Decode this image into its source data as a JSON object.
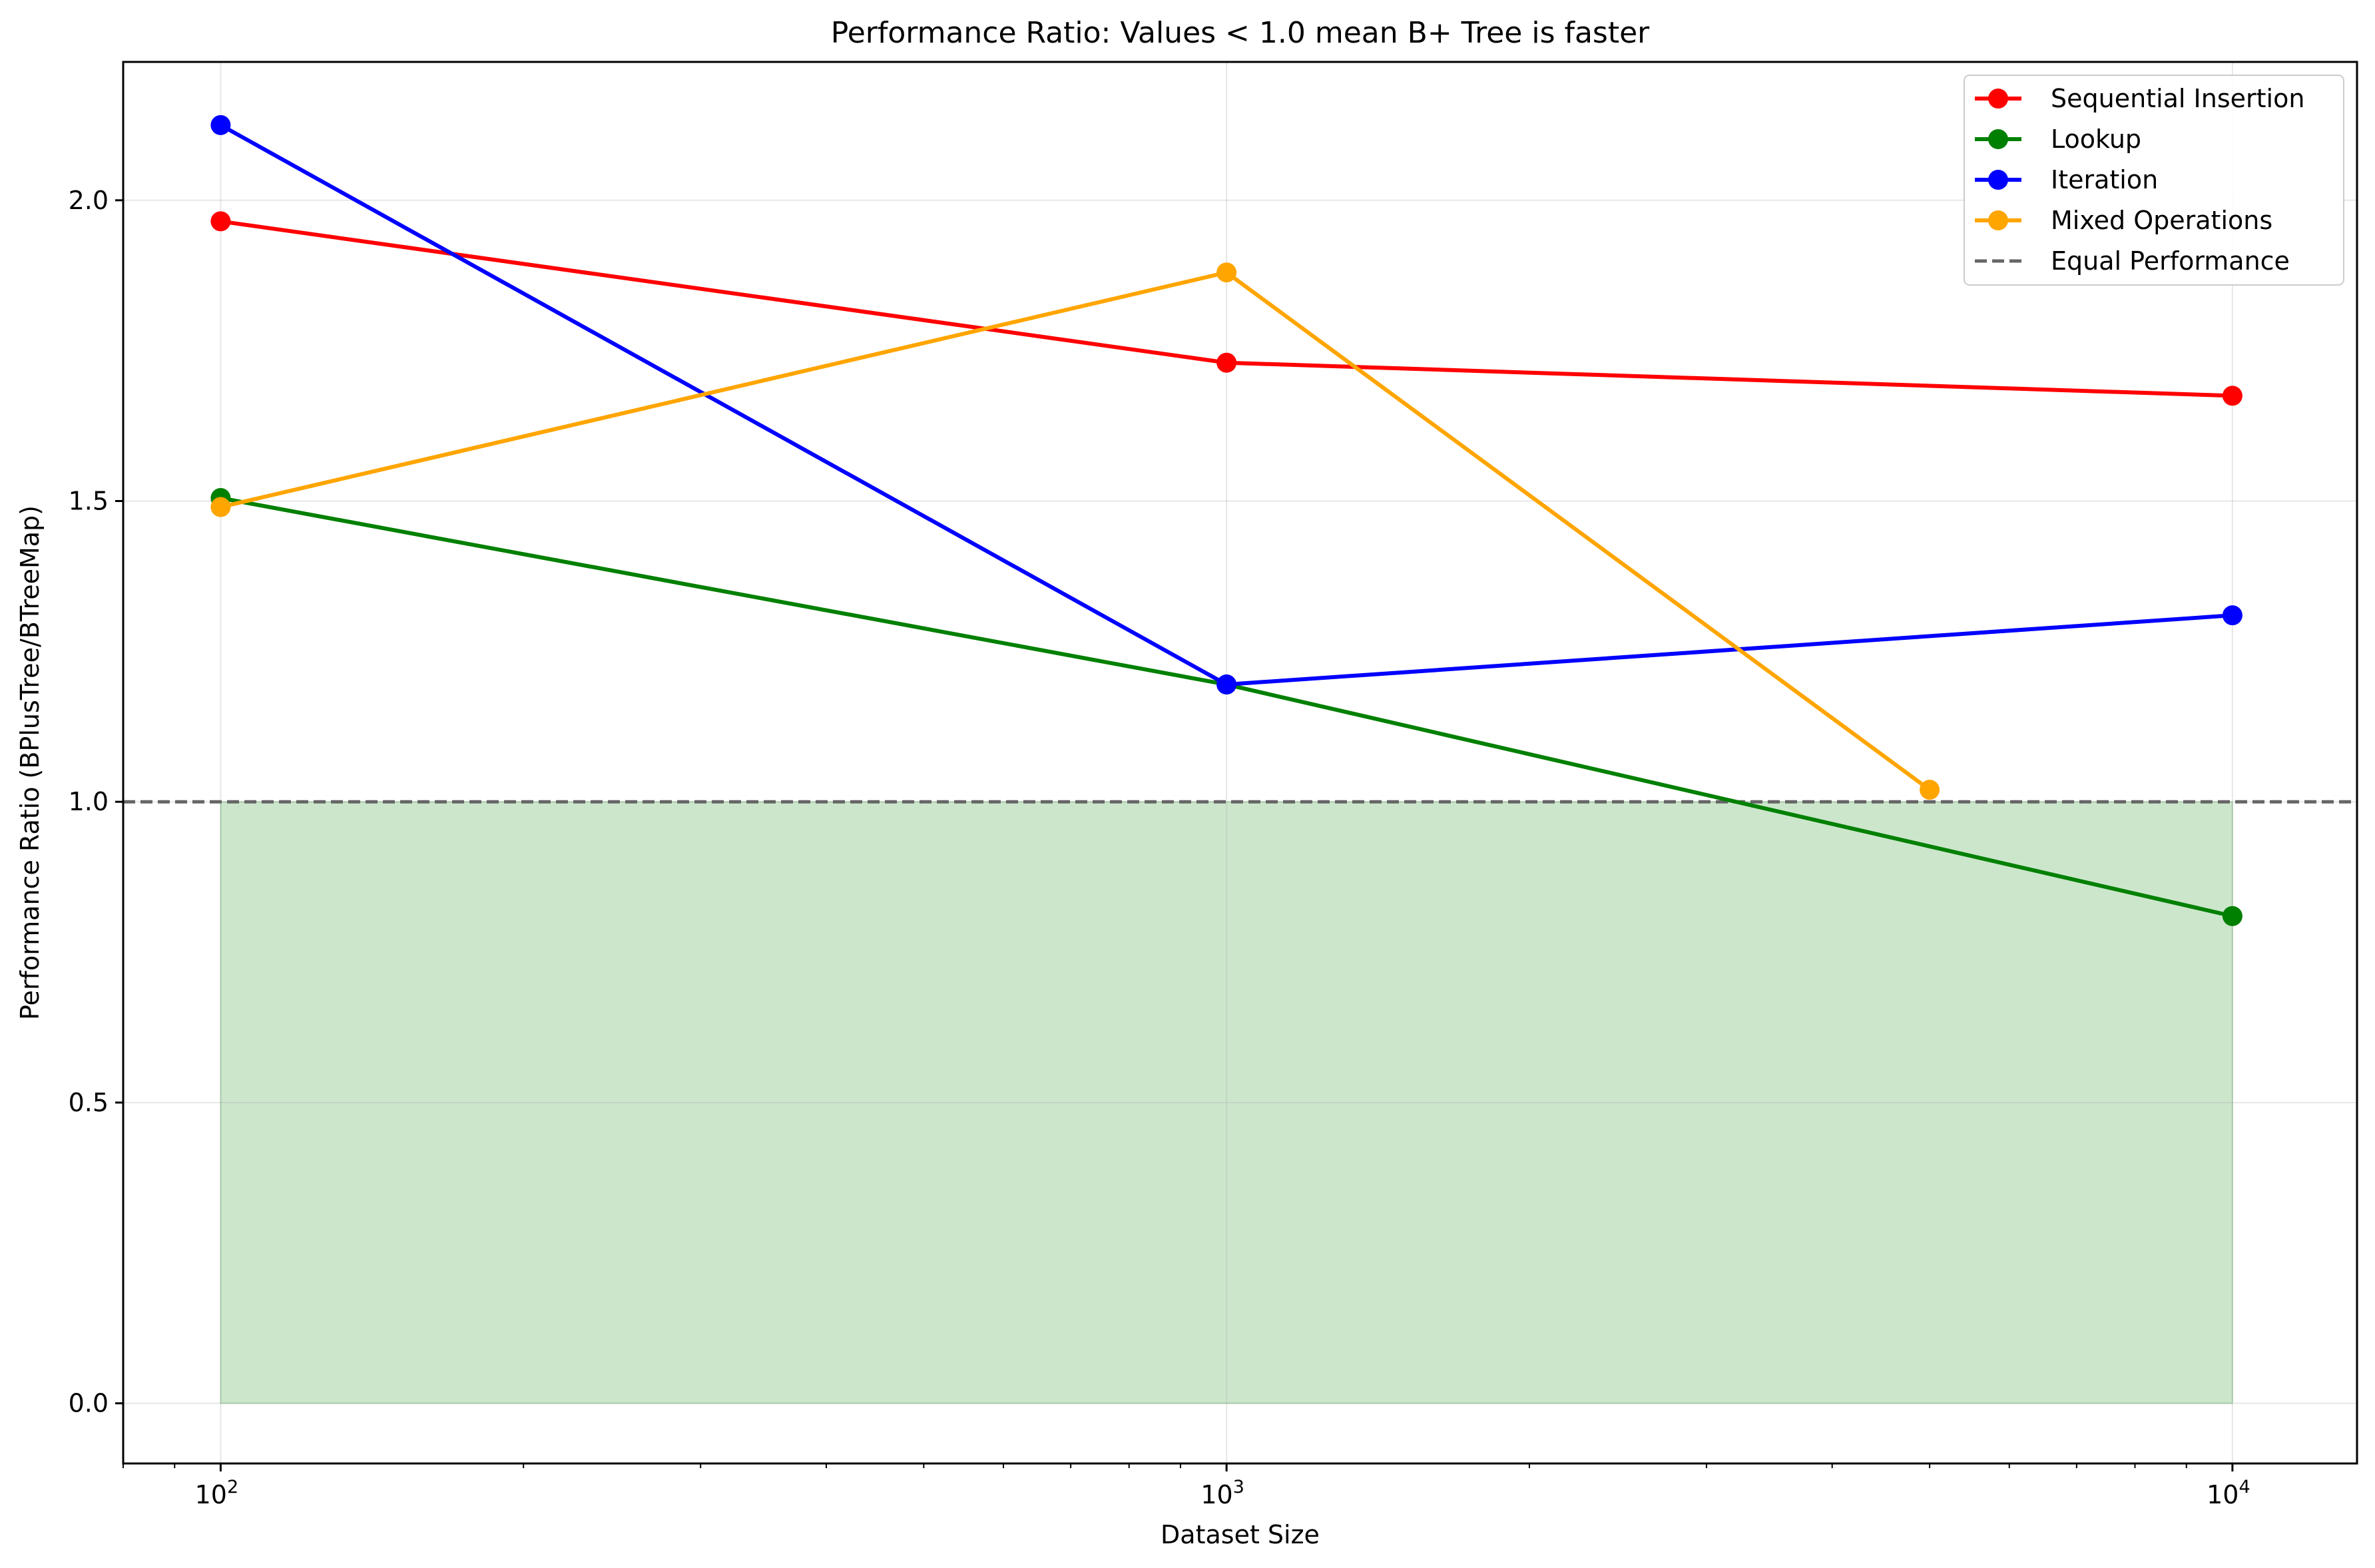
{
  "chart_data": {
    "type": "line",
    "title": "Performance Ratio: Values < 1.0 mean B+ Tree is faster",
    "xlabel": "Dataset Size",
    "ylabel": "Performance Ratio (BPlusTree/BTreeMap)",
    "x_scale": "log",
    "xlim": [
      80,
      13300
    ],
    "ylim": [
      -0.1,
      2.23
    ],
    "x_ticks": [
      {
        "value": 100,
        "base": "10",
        "exp": "2"
      },
      {
        "value": 1000,
        "base": "10",
        "exp": "3"
      },
      {
        "value": 10000,
        "base": "10",
        "exp": "4"
      }
    ],
    "y_ticks": [
      {
        "value": 0.0,
        "label": "0.0"
      },
      {
        "value": 0.5,
        "label": "0.5"
      },
      {
        "value": 1.0,
        "label": "1.0"
      },
      {
        "value": 1.5,
        "label": "1.5"
      },
      {
        "value": 2.0,
        "label": "2.0"
      }
    ],
    "grid": true,
    "legend_position": "top-right",
    "series": [
      {
        "name": "Sequential Insertion",
        "color": "#ff0000",
        "x": [
          100,
          1000,
          10000
        ],
        "y": [
          1.965,
          1.73,
          1.675
        ]
      },
      {
        "name": "Lookup",
        "color": "#008000",
        "x": [
          100,
          1000,
          10000
        ],
        "y": [
          1.505,
          1.195,
          0.81
        ]
      },
      {
        "name": "Iteration",
        "color": "#0000ff",
        "x": [
          100,
          1000,
          10000
        ],
        "y": [
          2.125,
          1.195,
          1.31
        ]
      },
      {
        "name": "Mixed Operations",
        "color": "#ffa500",
        "x": [
          100,
          1000,
          5000
        ],
        "y": [
          1.49,
          1.88,
          1.02
        ]
      }
    ],
    "reference_line": {
      "name": "Equal Performance",
      "y": 1.0,
      "color": "#666666",
      "style": "dashed"
    },
    "shaded_region": {
      "x": [
        100,
        10000
      ],
      "y": [
        0,
        1.0
      ],
      "color": "#008000",
      "opacity": 0.2
    }
  }
}
